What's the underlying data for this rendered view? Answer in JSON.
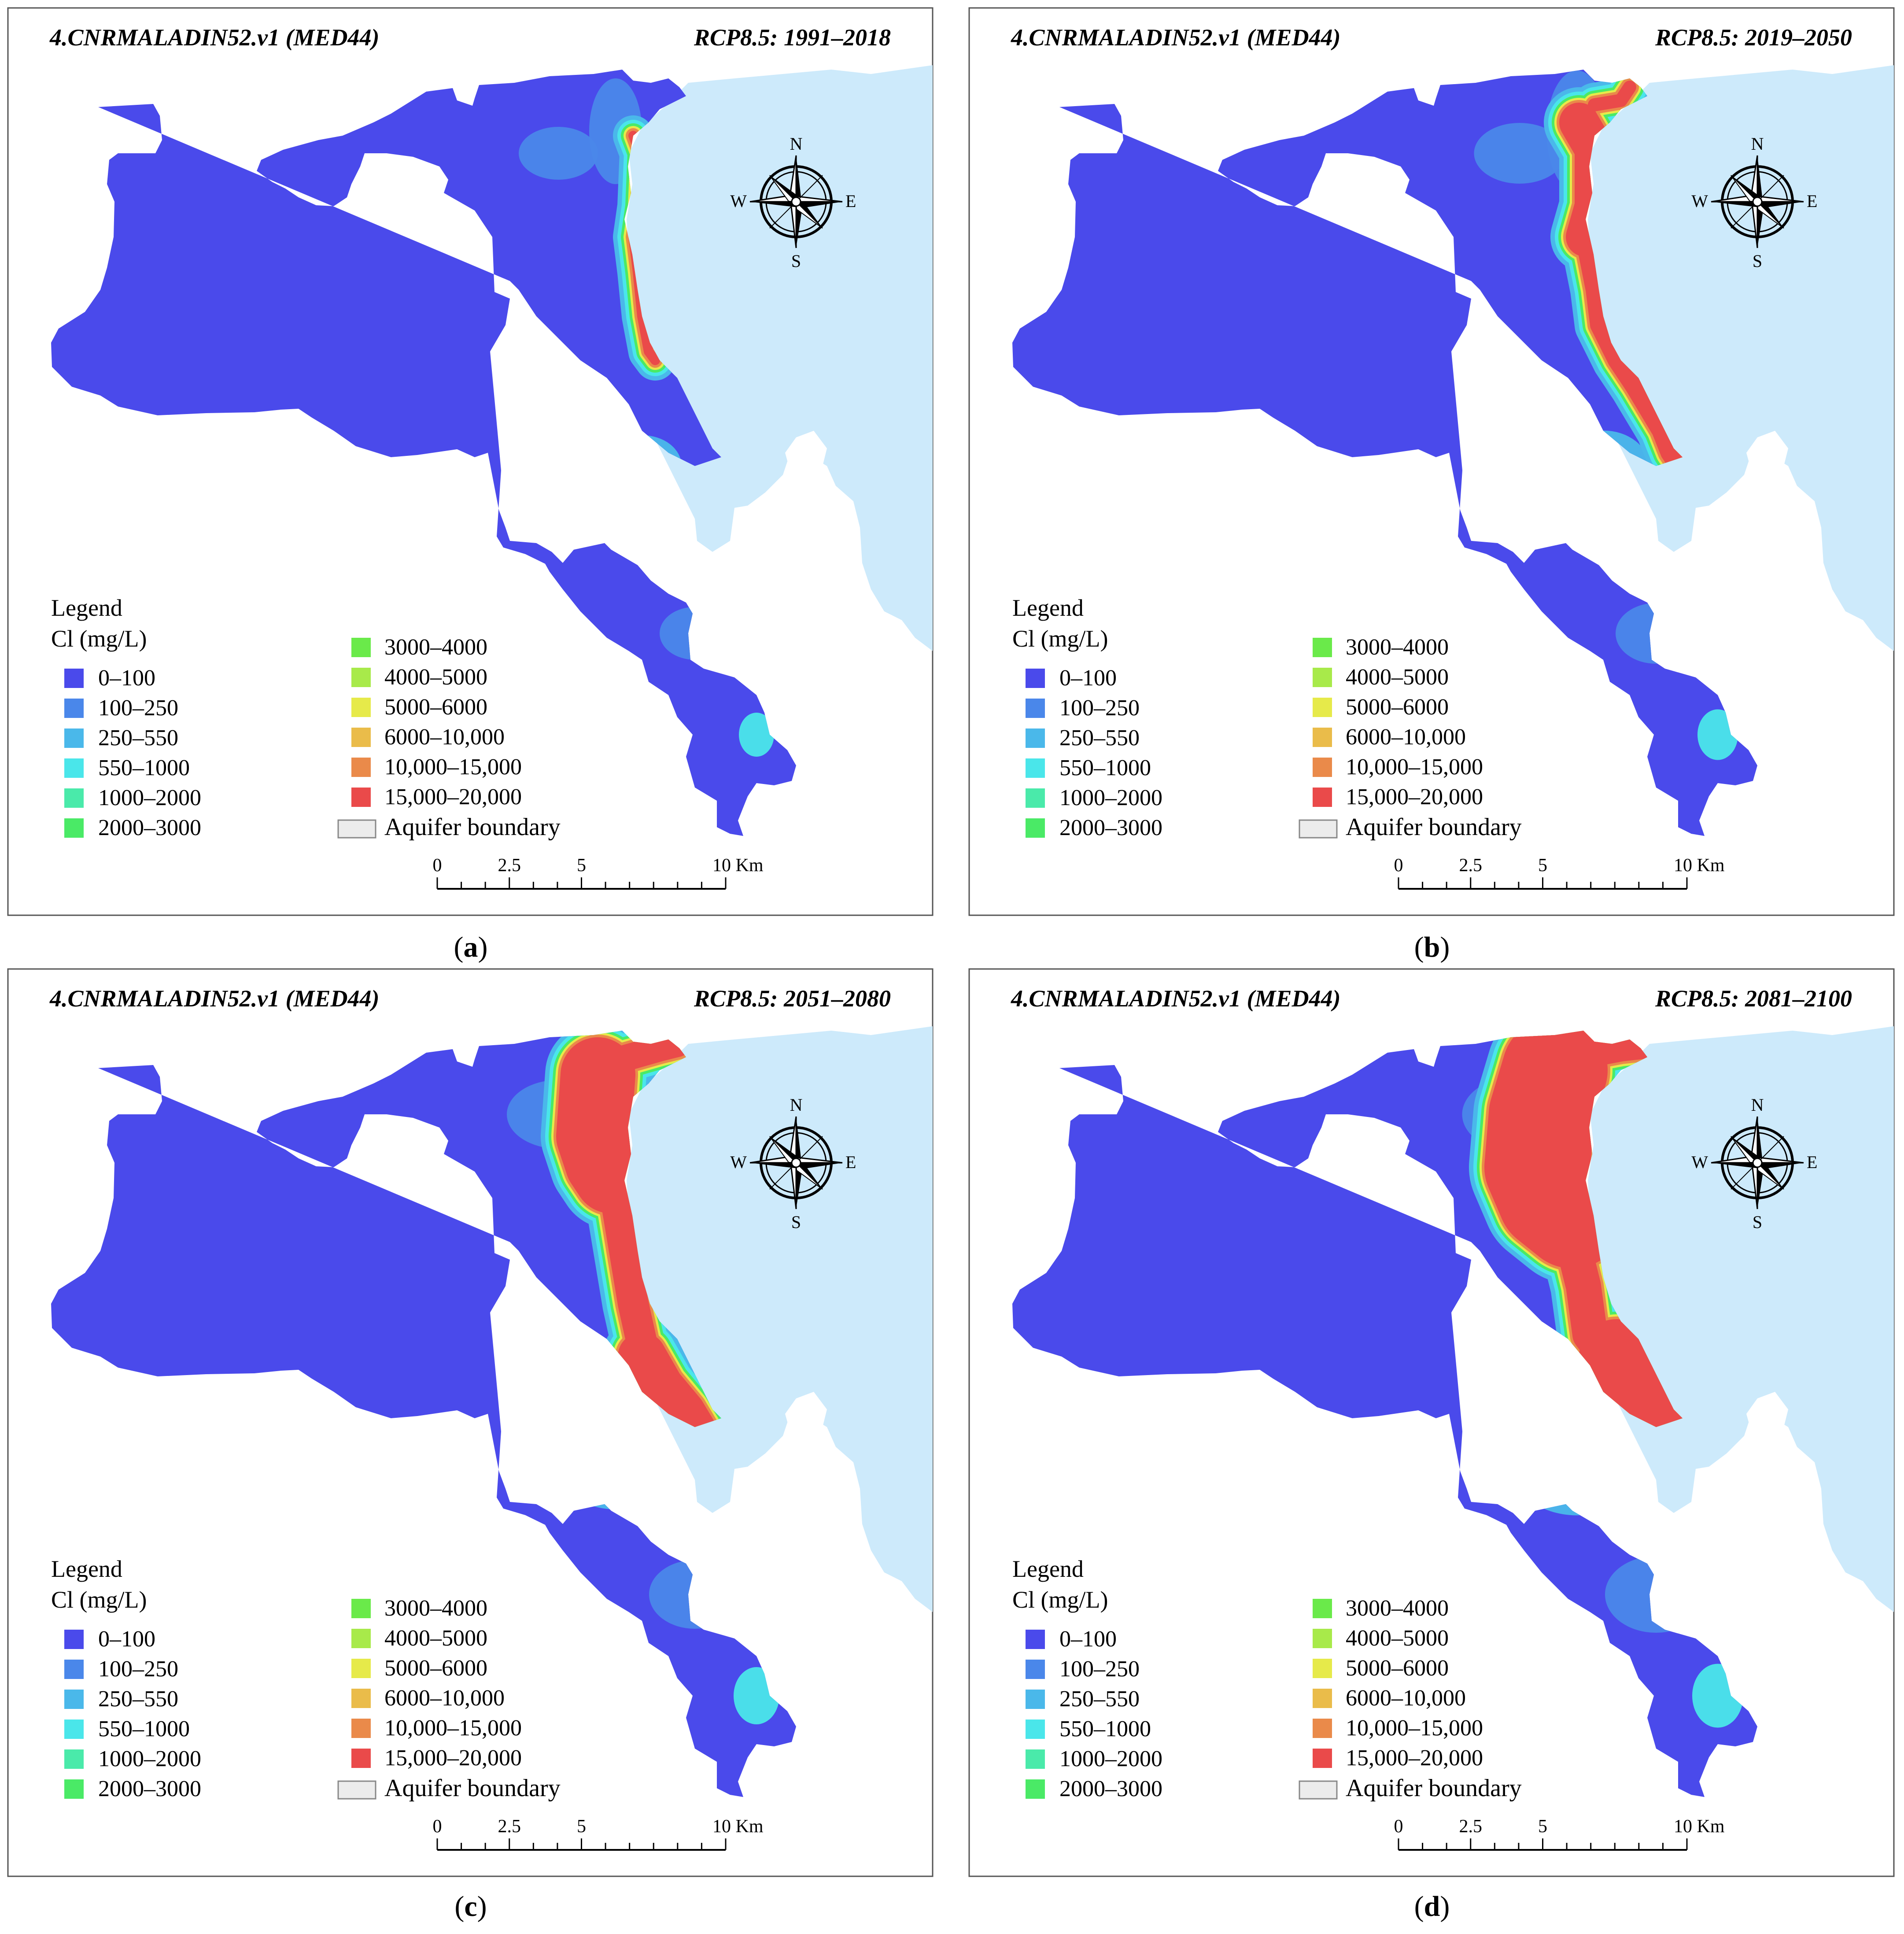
{
  "figure": {
    "panels": [
      {
        "id": "a",
        "model": "4.CNRMALADIN52.v1 (MED44)",
        "scenario": "RCP8.5: 1991–2018",
        "caption_letter": "a",
        "intrusion_level": 0
      },
      {
        "id": "b",
        "model": "4.CNRMALADIN52.v1 (MED44)",
        "scenario": "RCP8.5: 2019–2050",
        "caption_letter": "b",
        "intrusion_level": 1
      },
      {
        "id": "c",
        "model": "4.CNRMALADIN52.v1 (MED44)",
        "scenario": "RCP8.5: 2051–2080",
        "caption_letter": "c",
        "intrusion_level": 2
      },
      {
        "id": "d",
        "model": "4.CNRMALADIN52.v1 (MED44)",
        "scenario": "RCP8.5: 2081–2100",
        "caption_letter": "d",
        "intrusion_level": 3
      }
    ]
  },
  "legend": {
    "title": "Legend",
    "subtitle": "Cl (mg/L)",
    "classes_left": [
      {
        "label": "0–100",
        "color": "#4a4aeb"
      },
      {
        "label": "100–250",
        "color": "#4a87ea"
      },
      {
        "label": "250–550",
        "color": "#4ab8ea"
      },
      {
        "label": "550–1000",
        "color": "#4ae6ea"
      },
      {
        "label": "1000–2000",
        "color": "#4aeaaa"
      },
      {
        "label": "2000–3000",
        "color": "#4aea66"
      }
    ],
    "classes_right": [
      {
        "label": "3000–4000",
        "color": "#6aea4a"
      },
      {
        "label": "4000–5000",
        "color": "#a8ea4a"
      },
      {
        "label": "5000–6000",
        "color": "#e6ea4a"
      },
      {
        "label": "6000–10,000",
        "color": "#eabc4a"
      },
      {
        "label": "10,000–15,000",
        "color": "#ea8a4a"
      },
      {
        "label": "15,000–20,000",
        "color": "#ea4a4a"
      }
    ],
    "boundary_label": "Aquifer boundary",
    "boundary_color": "#ececec"
  },
  "compass": {
    "n": "N",
    "s": "S",
    "e": "E",
    "w": "W"
  },
  "scale_bar": {
    "ticks": [
      "0",
      "2.5",
      "5",
      "10 Km"
    ]
  },
  "colors": {
    "sea": "#cdeafb",
    "aquifer": "#4a4aeb",
    "frame": "#555555"
  }
}
